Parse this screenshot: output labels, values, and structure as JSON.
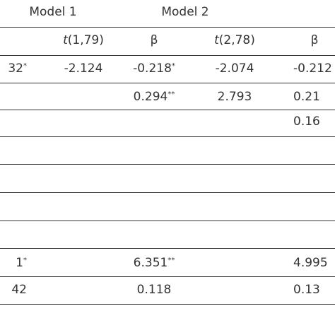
{
  "header": {
    "model1": "Model 1",
    "model2": "Model 2"
  },
  "subheader": [
    {
      "symbol": "t",
      "df": "(1,79)"
    },
    "β",
    {
      "symbol": "t",
      "df": "(2,78)"
    },
    "β"
  ],
  "table": {
    "rows": [
      [
        {
          "value": "32",
          "sup": "*"
        },
        {
          "value": "-2.124"
        },
        {
          "value": "-0.218",
          "sup": "*"
        },
        {
          "value": "-2.074"
        },
        {
          "value": "-0.212"
        }
      ],
      [
        null,
        null,
        {
          "value": "0.294",
          "sup": "**"
        },
        {
          "value": "2.793"
        },
        {
          "value": "0.21"
        }
      ],
      [
        null,
        null,
        null,
        null,
        {
          "value": "0.16"
        }
      ],
      [
        null,
        null,
        null,
        null,
        null
      ],
      [
        null,
        null,
        null,
        null,
        null
      ],
      [
        null,
        null,
        null,
        null,
        null
      ],
      [
        {
          "value": "1",
          "sup": "*"
        },
        null,
        {
          "value": "6.351",
          "sup": "**"
        },
        null,
        {
          "value": "4.995"
        }
      ],
      [
        {
          "value": "42"
        },
        null,
        {
          "value": "0.118"
        },
        null,
        {
          "value": "0.13"
        }
      ]
    ]
  }
}
